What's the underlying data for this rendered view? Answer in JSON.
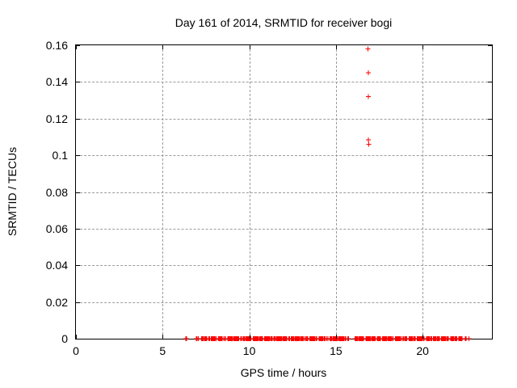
{
  "chart_data": {
    "type": "scatter",
    "title": "Day 161 of 2014, SRMTID for receiver bogi",
    "xlabel": "GPS time / hours",
    "ylabel": "SRMTID / TECUs",
    "xlim": [
      0,
      24
    ],
    "ylim": [
      0,
      0.16
    ],
    "xticks": [
      "0",
      "5",
      "10",
      "15",
      "20"
    ],
    "yticks": [
      "0",
      "0.02",
      "0.04",
      "0.06",
      "0.08",
      "0.1",
      "0.12",
      "0.14",
      "0.16"
    ],
    "grid": true,
    "grid_style": "dashed",
    "grid_color": "#9c9c9c",
    "background_color": "#ffffff",
    "border_color": "#000000",
    "legend": "none",
    "series": [
      {
        "name": "SRMTID receiver bogi",
        "marker": "plus",
        "color": "#ff0000",
        "points": [
          [
            16.85,
            0.158
          ],
          [
            16.88,
            0.145
          ],
          [
            16.88,
            0.132
          ],
          [
            16.88,
            0.1085
          ],
          [
            16.9,
            0.106
          ]
        ],
        "baseline": {
          "value": 0.0,
          "point_spacing_hours": 0.05,
          "segments": [
            [
              6.33,
              6.42
            ],
            [
              6.95,
              7.08
            ],
            [
              7.25,
              7.58
            ],
            [
              7.66,
              7.72
            ],
            [
              7.8,
              8.12
            ],
            [
              8.22,
              8.48
            ],
            [
              8.57,
              8.63
            ],
            [
              8.75,
              9.42
            ],
            [
              9.5,
              9.56
            ],
            [
              9.65,
              10.12
            ],
            [
              10.22,
              10.78
            ],
            [
              10.87,
              11.32
            ],
            [
              11.42,
              12.18
            ],
            [
              12.28,
              12.34
            ],
            [
              12.42,
              13.12
            ],
            [
              13.22,
              13.38
            ],
            [
              13.48,
              13.92
            ],
            [
              14.02,
              14.38
            ],
            [
              14.48,
              14.56
            ],
            [
              14.66,
              15.58
            ],
            [
              15.68,
              15.74
            ],
            [
              16.1,
              16.62
            ],
            [
              16.72,
              17.28
            ],
            [
              17.38,
              17.58
            ],
            [
              17.68,
              18.32
            ],
            [
              18.42,
              18.78
            ],
            [
              18.88,
              19.12
            ],
            [
              19.22,
              19.58
            ],
            [
              19.68,
              20.12
            ],
            [
              20.22,
              20.52
            ],
            [
              20.62,
              20.98
            ],
            [
              21.08,
              21.52
            ],
            [
              21.62,
              21.98
            ],
            [
              22.08,
              22.32
            ],
            [
              22.46,
              22.52
            ],
            [
              22.68,
              22.72
            ]
          ]
        }
      }
    ]
  }
}
